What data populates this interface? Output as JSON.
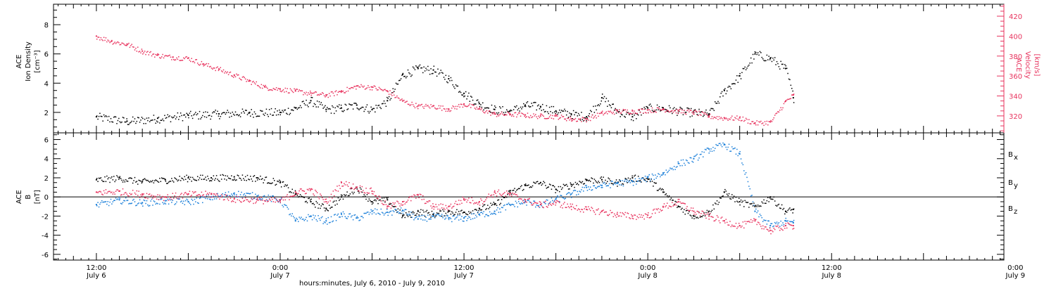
{
  "chart_data": [
    {
      "type": "scatter",
      "panel": "top",
      "ylabel_left": [
        "ACE",
        "Ion Density",
        "[cm⁻³]"
      ],
      "ylabel_right": [
        "ACE",
        "Velocity",
        "[km/s]"
      ],
      "left_ylim": [
        0.6,
        9.4
      ],
      "left_ticks": [
        "2",
        "4",
        "6",
        "8"
      ],
      "right_ylim": [
        303,
        432
      ],
      "right_ticks": [
        "320",
        "340",
        "360",
        "380",
        "400",
        "420"
      ],
      "colors": {
        "density": "#000000",
        "velocity": "#e8335e"
      },
      "series": [
        {
          "key": "density",
          "axis": "left",
          "x": [
            0,
            4,
            8,
            12,
            16,
            20,
            24,
            26,
            28,
            30,
            32,
            34,
            36,
            38,
            40,
            42,
            44,
            46,
            48,
            50,
            52,
            54,
            56,
            58,
            60,
            62,
            64,
            66,
            68,
            70,
            72,
            74,
            76,
            78,
            80,
            82,
            84,
            86,
            88,
            90,
            91
          ],
          "y": [
            1.7,
            1.4,
            1.6,
            1.8,
            1.9,
            2.0,
            2.0,
            2.3,
            2.8,
            2.2,
            2.3,
            2.5,
            2.2,
            2.8,
            4.6,
            5.0,
            4.9,
            4.3,
            3.3,
            2.6,
            2.2,
            2.1,
            2.5,
            2.4,
            2.1,
            1.9,
            1.7,
            3.0,
            2.1,
            1.7,
            2.3,
            2.3,
            2.1,
            2.0,
            1.9,
            3.5,
            4.5,
            6.0,
            5.7,
            5.0,
            3.0
          ]
        },
        {
          "key": "velocity",
          "axis": "right",
          "x": [
            0,
            2,
            4,
            6,
            8,
            10,
            12,
            14,
            16,
            18,
            20,
            22,
            24,
            26,
            28,
            30,
            32,
            34,
            36,
            38,
            40,
            42,
            44,
            46,
            48,
            50,
            52,
            54,
            56,
            58,
            60,
            62,
            64,
            66,
            68,
            70,
            72,
            74,
            76,
            78,
            80,
            82,
            84,
            86,
            88,
            90,
            91
          ],
          "y": [
            400,
            395,
            392,
            385,
            381,
            379,
            378,
            372,
            367,
            361,
            355,
            349,
            347,
            345,
            343,
            341,
            345,
            350,
            349,
            345,
            335,
            330,
            330,
            327,
            332,
            327,
            322,
            322,
            321,
            320,
            320,
            317,
            317,
            323,
            325,
            325,
            326,
            327,
            325,
            324,
            320,
            318,
            318,
            313,
            314,
            335,
            341
          ]
        }
      ]
    },
    {
      "type": "scatter",
      "panel": "bottom",
      "ylabel": [
        "ACE",
        "B",
        "[nT]"
      ],
      "ylim": [
        -6.6,
        6.7
      ],
      "yticks": [
        "-6",
        "-4",
        "-2",
        "0",
        "2",
        "4",
        "6"
      ],
      "x_axis_label": "hours:minutes, July  6, 2010 - July  9, 2010",
      "xlim": [
        -5.6,
        118.5
      ],
      "xticks": [
        {
          "x": 0,
          "time": "12:00",
          "day": "July 6"
        },
        {
          "x": 24,
          "time": "0:00",
          "day": "July 7"
        },
        {
          "x": 48,
          "time": "12:00",
          "day": "July 7"
        },
        {
          "x": 72,
          "time": "0:00",
          "day": "July 8"
        },
        {
          "x": 96,
          "time": "12:00",
          "day": "July 8"
        },
        {
          "x": 120,
          "time": "0:00",
          "day": "July 9"
        }
      ],
      "colors": {
        "bx": "#000000",
        "by": "#1a7fd9",
        "bz": "#e8335e"
      },
      "legend": [
        {
          "key": "bx",
          "main": "B",
          "sub": "x"
        },
        {
          "key": "by",
          "main": "B",
          "sub": "y"
        },
        {
          "key": "bz",
          "main": "B",
          "sub": "z"
        }
      ],
      "series": [
        {
          "key": "bx",
          "x": [
            0,
            3,
            6,
            9,
            12,
            15,
            18,
            21,
            24,
            26,
            28,
            30,
            32,
            34,
            36,
            38,
            40,
            42,
            44,
            46,
            48,
            50,
            52,
            54,
            56,
            58,
            60,
            62,
            64,
            66,
            68,
            70,
            72,
            74,
            76,
            78,
            80,
            82,
            84,
            86,
            88,
            90,
            91
          ],
          "y": [
            1.8,
            2.0,
            1.6,
            1.8,
            2.0,
            2.0,
            2.1,
            2.0,
            1.5,
            0.3,
            -0.5,
            -1.2,
            0.0,
            1.0,
            -0.5,
            -0.3,
            -2.0,
            -1.5,
            -1.8,
            -1.5,
            -1.6,
            -1.2,
            -0.8,
            0.5,
            1.2,
            1.5,
            0.8,
            1.3,
            1.8,
            1.8,
            1.5,
            2.0,
            1.9,
            0.5,
            -1.0,
            -2.0,
            -1.5,
            0.5,
            -0.5,
            -1.0,
            0.0,
            -1.5,
            -1.3
          ]
        },
        {
          "key": "by",
          "x": [
            0,
            3,
            6,
            9,
            12,
            15,
            18,
            21,
            24,
            26,
            28,
            30,
            32,
            34,
            36,
            38,
            40,
            42,
            44,
            46,
            48,
            50,
            52,
            54,
            56,
            58,
            60,
            62,
            64,
            66,
            68,
            70,
            72,
            74,
            76,
            78,
            80,
            82,
            84,
            86,
            88,
            90,
            91
          ],
          "y": [
            -0.8,
            -0.3,
            -0.6,
            -0.4,
            -0.5,
            0.0,
            0.4,
            0.1,
            -0.3,
            -2.5,
            -2.0,
            -2.5,
            -1.8,
            -2.2,
            -1.5,
            -1.6,
            -1.4,
            -2.3,
            -2.0,
            -2.2,
            -2.2,
            -1.8,
            -1.5,
            -0.8,
            -0.5,
            -0.8,
            -0.2,
            0.3,
            1.0,
            1.2,
            1.5,
            1.6,
            2.0,
            2.5,
            3.5,
            4.0,
            5.0,
            5.5,
            4.5,
            -1.5,
            -3.0,
            -2.5,
            -2.7
          ]
        },
        {
          "key": "bz",
          "x": [
            0,
            3,
            6,
            9,
            12,
            15,
            18,
            21,
            24,
            26,
            28,
            30,
            32,
            34,
            36,
            38,
            40,
            42,
            44,
            46,
            48,
            50,
            52,
            54,
            56,
            58,
            60,
            62,
            64,
            66,
            68,
            70,
            72,
            74,
            76,
            78,
            80,
            82,
            84,
            86,
            88,
            90,
            91
          ],
          "y": [
            0.5,
            0.6,
            0.3,
            0.0,
            0.3,
            0.3,
            -0.2,
            -0.3,
            -0.4,
            0.5,
            0.8,
            -0.5,
            1.5,
            1.0,
            0.6,
            -1.0,
            -0.5,
            0.2,
            -1.0,
            -1.0,
            -0.2,
            -0.5,
            0.5,
            0.3,
            -0.3,
            -0.8,
            -0.6,
            -1.0,
            -1.3,
            -1.5,
            -1.8,
            -2.0,
            -1.9,
            -1.0,
            -0.5,
            -1.5,
            -2.0,
            -2.5,
            -3.0,
            -2.5,
            -3.5,
            -3.0,
            -3.0
          ]
        }
      ]
    }
  ]
}
